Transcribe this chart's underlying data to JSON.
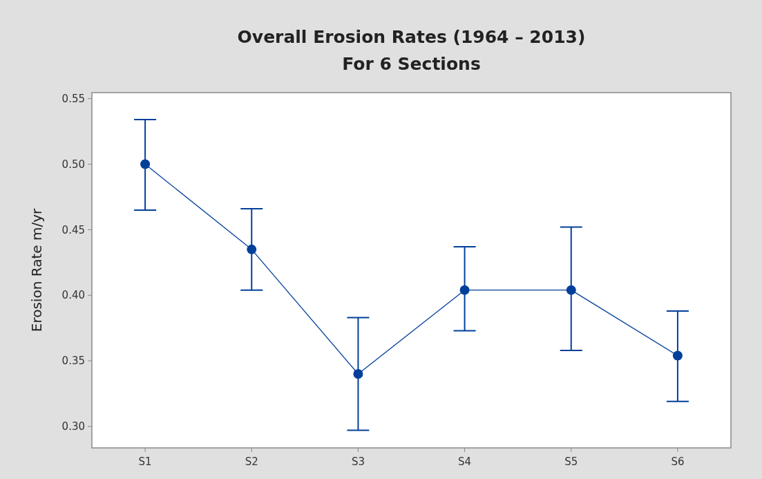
{
  "chart_data": {
    "type": "line",
    "title": "Overall Erosion Rates (1964 – 2013)",
    "subtitle": "For 6 Sections",
    "ylabel": "Erosion Rate m/yr",
    "categories": [
      "S1",
      "S2",
      "S3",
      "S4",
      "S5",
      "S6"
    ],
    "series": [
      {
        "color": "#003f9a",
        "values": [
          0.5,
          0.435,
          0.34,
          0.404,
          0.404,
          0.354
        ],
        "errors": [
          [
            0.465,
            0.534
          ],
          [
            0.404,
            0.466
          ],
          [
            0.297,
            0.383
          ],
          [
            0.373,
            0.437
          ],
          [
            0.358,
            0.452
          ],
          [
            0.319,
            0.388
          ]
        ]
      }
    ],
    "ylim": [
      0.2836,
      0.5546
    ],
    "yticks": [
      {
        "value": 0.3,
        "label": "0.30"
      },
      0.35,
      {
        "value": 0.4,
        "label": "0.40"
      },
      0.45,
      {
        "value": 0.5,
        "label": "0.50"
      },
      0.55
    ],
    "marker": "circle",
    "grid": false
  }
}
